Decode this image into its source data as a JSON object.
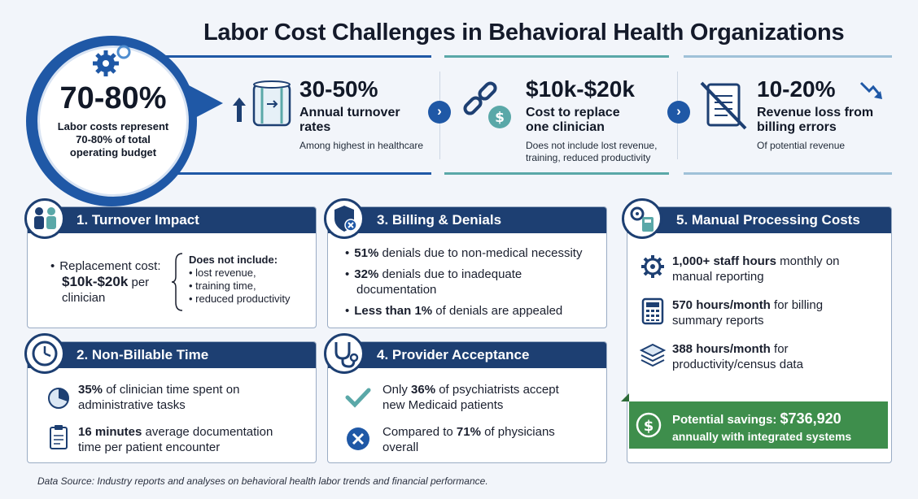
{
  "title": "Labor Cost Challenges in Behavioral Health Organizations",
  "hero": {
    "value": "70-80%",
    "line1": "Labor costs represent",
    "line2": "70-80% of total",
    "line3": "operating budget"
  },
  "stats": [
    {
      "value": "30-50%",
      "label1": "Annual turnover",
      "label2": "rates",
      "note1": "Among highest in healthcare",
      "note2": "",
      "icon": "turnover-cylinder-icon",
      "accent": "#1f58a6"
    },
    {
      "value": "$10k-$20k",
      "label1": "Cost to replace",
      "label2": "one clinician",
      "note1": "Does not include lost revenue,",
      "note2": "training, reduced productivity",
      "icon": "broken-chain-dollar-icon",
      "accent": "#5aa8a8"
    },
    {
      "value": "10-20%",
      "label1": "Revenue loss from",
      "label2": "billing errors",
      "note1": "Of potential revenue",
      "note2": "",
      "icon": "crossed-document-icon",
      "accent": "#9fc1d8"
    }
  ],
  "cards": {
    "turnover": {
      "title": "1. Turnover Impact",
      "replacement_label": "Replacement cost:",
      "replacement_value": "$10k-$20k",
      "replacement_suffix": "per",
      "replacement_tail": "clinician",
      "excludes_title": "Does not include:",
      "excludes": [
        "• lost revenue,",
        "• training time,",
        "• reduced productivity"
      ]
    },
    "billing": {
      "title": "3. Billing & Denials",
      "items": [
        {
          "bold": "51%",
          "text": " denials due to non-medical necessity",
          "text2": ""
        },
        {
          "bold": "32%",
          "text": " denials due to inadequate",
          "text2": "documentation"
        },
        {
          "bold": "Less than 1%",
          "text": " of denials are appealed",
          "text2": ""
        }
      ]
    },
    "manual": {
      "title": "5. Manual Processing Costs",
      "items": [
        {
          "bold": "1,000+ staff hours",
          "text": " monthly on",
          "text2": "manual reporting",
          "icon": "gear-icon"
        },
        {
          "bold": "570 hours/month",
          "text": " for billing",
          "text2": "summary reports",
          "icon": "calculator-icon"
        },
        {
          "bold": "388 hours/month",
          "text": " for",
          "text2": "productivity/census data",
          "icon": "stack-layers-icon"
        }
      ],
      "savings_label": "Potential savings:",
      "savings_value": "$736,920",
      "savings_tail": "annually with integrated systems"
    },
    "nonbillable": {
      "title": "2. Non-Billable Time",
      "items": [
        {
          "bold": "35%",
          "text": " of clinician time spent on",
          "text2": "administrative tasks"
        },
        {
          "bold": "16 minutes",
          "text": " average documentation",
          "text2": "time per patient encounter"
        }
      ]
    },
    "provider": {
      "title": "4. Provider Acceptance",
      "items": [
        {
          "pre": "Only ",
          "bold": "36%",
          "text": " of psychiatrists accept",
          "text2": "new Medicaid patients"
        },
        {
          "pre": "Compared to ",
          "bold": "71%",
          "text": " of physicians",
          "text2": "overall"
        }
      ]
    }
  },
  "source": "Data Source: Industry reports and analyses on behavioral health labor trends and financial performance.",
  "colors": {
    "navy": "#1d3f72",
    "blue": "#1f58a6",
    "green": "#3e8e4c"
  }
}
